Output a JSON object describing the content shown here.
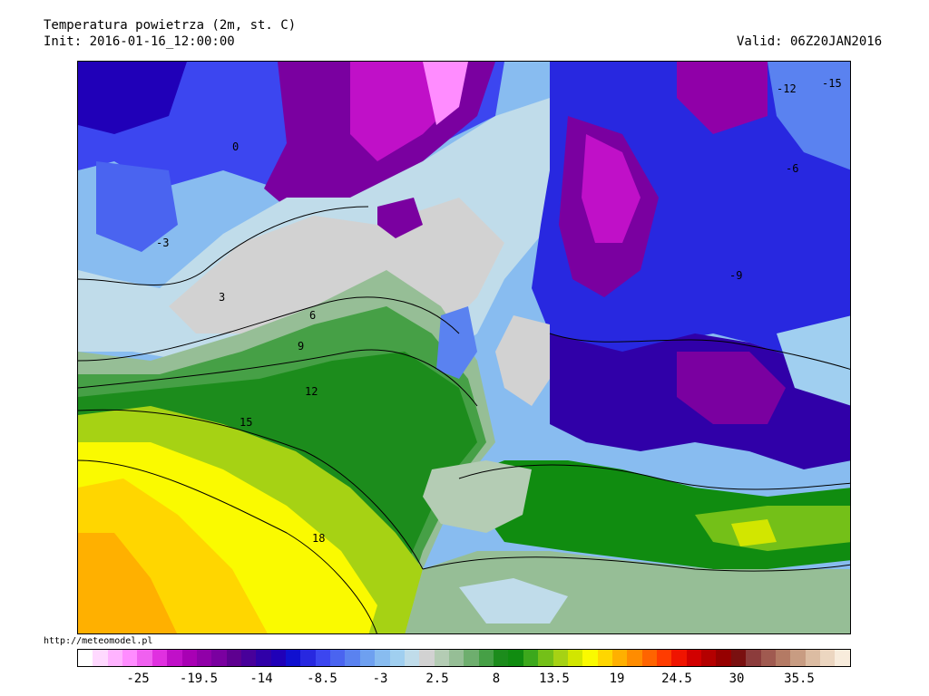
{
  "header": {
    "title": "Temperatura powietrza (2m, st. C)",
    "init": "Init: 2016-01-16_12:00:00",
    "valid": "Valid: 06Z20JAN2016"
  },
  "source": "http://meteomodel.pl",
  "colorbar": {
    "colors": [
      "#ffffff",
      "#ffd9ff",
      "#ffb3ff",
      "#ff8cff",
      "#f060f0",
      "#e030e0",
      "#c010c8",
      "#a800b4",
      "#9000a8",
      "#7a00a0",
      "#5e0090",
      "#48009a",
      "#3000a8",
      "#2000b8",
      "#1010d0",
      "#2828e0",
      "#3c46f0",
      "#4a64f0",
      "#5a82f0",
      "#6ea0f0",
      "#88bcf0",
      "#a0cff0",
      "#c0dcea",
      "#d2d2d2",
      "#b4ccb4",
      "#96be96",
      "#6eae6e",
      "#46a046",
      "#1c8c1c",
      "#108c10",
      "#3ca81c",
      "#74c018",
      "#a6d214",
      "#d2e600",
      "#fafa00",
      "#ffd600",
      "#ffb000",
      "#ff8c00",
      "#ff6400",
      "#ff3c00",
      "#f01400",
      "#d20000",
      "#b40000",
      "#960000",
      "#7a1010",
      "#8c3c3c",
      "#a05a50",
      "#b47a64",
      "#c89c82",
      "#dcbca2",
      "#ecd6c0",
      "#f8ecdc"
    ],
    "tick_labels": [
      "-25",
      "-19.5",
      "-14",
      "-8.5",
      "-3",
      "2.5",
      "8",
      "13.5",
      "19",
      "24.5",
      "30",
      "35.5"
    ]
  },
  "map": {
    "contour_labels": [
      "3",
      "6",
      "9",
      "12",
      "15",
      "18",
      "0",
      "-3",
      "-6",
      "-9",
      "-12",
      "-15"
    ]
  }
}
